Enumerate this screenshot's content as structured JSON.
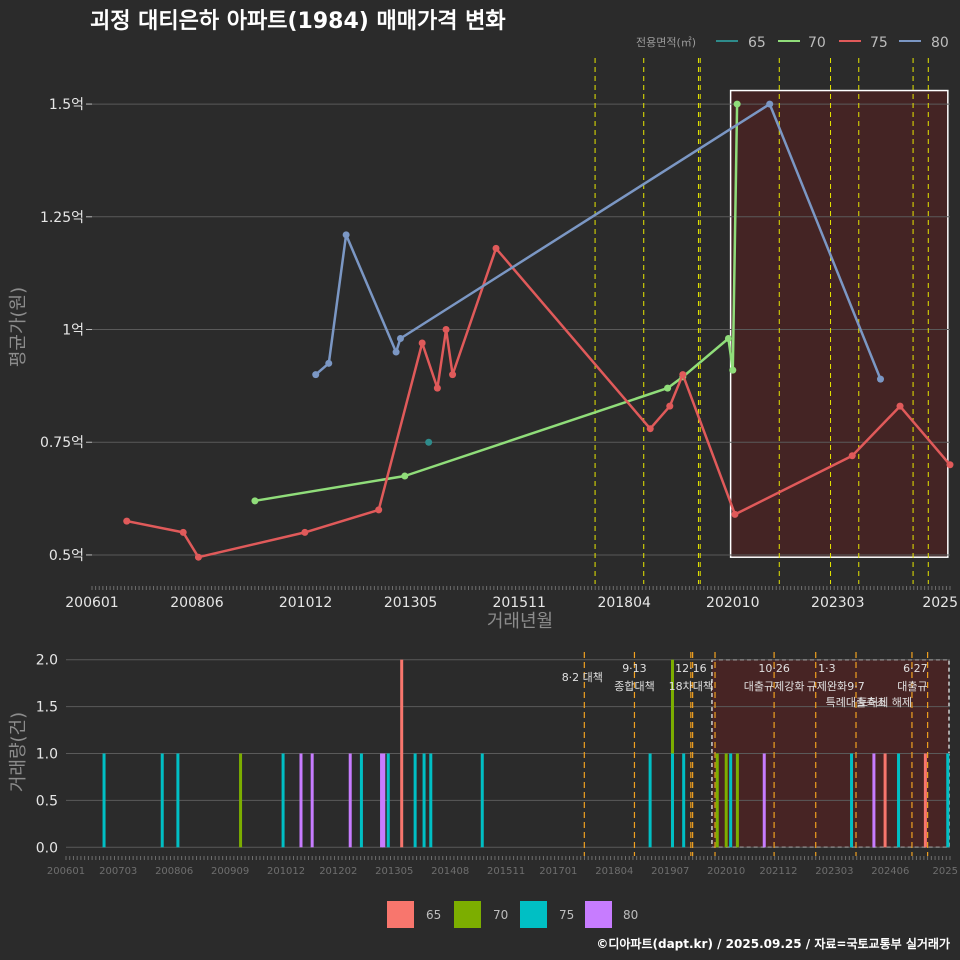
{
  "title": "괴정 대티은하 아파트(1984) 매매가격 변화",
  "footer": "©디아파트(dapt.kr) / 2025.09.25 / 자료=국토교통부 실거래가",
  "colors": {
    "background": "#2b2b2b",
    "s65_top": "#2e8b8b",
    "s70_top": "#90dd7a",
    "s75_top": "#e05a5a",
    "s80_top": "#7b97c4",
    "s65_bot": "#f8766d",
    "s70_bot": "#7cae00",
    "s75_bot": "#00bfc4",
    "s80_bot": "#c77cff",
    "policy": "#e6e600",
    "policy_bot": "#f0a020",
    "highlight": "#5a1f1f"
  },
  "legend_top": {
    "title": "전용면적(㎡)",
    "items": [
      "65",
      "70",
      "75",
      "80"
    ]
  },
  "legend_bottom": {
    "items": [
      "65",
      "70",
      "75",
      "80"
    ]
  },
  "chart_data": [
    {
      "type": "line",
      "title": "괴정 대티은하 아파트(1984) 매매가격 변화",
      "xlabel": "거래년월",
      "ylabel": "평균가(원)",
      "x_ticks": [
        "200601",
        "200806",
        "201012",
        "201305",
        "201511",
        "201804",
        "202010",
        "202303",
        "2025"
      ],
      "y_ticks": [
        "0.5억",
        "0.75억",
        "1억",
        "1.25억",
        "1.5억"
      ],
      "y_tick_values": [
        0.5,
        0.75,
        1.0,
        1.25,
        1.5
      ],
      "ylim": [
        0.44,
        1.58
      ],
      "xlim": [
        2006.0,
        2025.75
      ],
      "policy_lines": [
        2017.58,
        2018.7,
        2019.96,
        2020.0,
        2021.82,
        2023.0,
        2023.65,
        2024.9,
        2025.25
      ],
      "highlight_range": [
        2020.7,
        2025.7
      ],
      "series": [
        {
          "name": "65",
          "points": [
            [
              2013.75,
              0.75
            ]
          ]
        },
        {
          "name": "70",
          "points": [
            [
              2009.75,
              0.62
            ],
            [
              2013.2,
              0.675
            ],
            [
              2019.25,
              0.87
            ],
            [
              2019.6,
              0.895
            ],
            [
              2020.65,
              0.98
            ],
            [
              2020.75,
              0.91
            ],
            [
              2020.85,
              1.5
            ]
          ]
        },
        {
          "name": "75",
          "points": [
            [
              2006.8,
              0.575
            ],
            [
              2008.1,
              0.55
            ],
            [
              2008.45,
              0.495
            ],
            [
              2010.9,
              0.55
            ],
            [
              2012.6,
              0.6
            ],
            [
              2013.6,
              0.97
            ],
            [
              2013.95,
              0.87
            ],
            [
              2014.15,
              1.0
            ],
            [
              2014.3,
              0.9
            ],
            [
              2015.3,
              1.18
            ],
            [
              2018.85,
              0.78
            ],
            [
              2019.3,
              0.83
            ],
            [
              2019.6,
              0.9
            ],
            [
              2020.8,
              0.59
            ],
            [
              2023.5,
              0.72
            ],
            [
              2024.6,
              0.83
            ],
            [
              2025.75,
              0.7
            ]
          ]
        },
        {
          "name": "80",
          "points": [
            [
              2011.15,
              0.9
            ],
            [
              2011.45,
              0.925
            ],
            [
              2011.85,
              1.21
            ],
            [
              2013.0,
              0.95
            ],
            [
              2013.1,
              0.98
            ],
            [
              2021.6,
              1.5
            ],
            [
              2024.15,
              0.89
            ]
          ]
        }
      ]
    },
    {
      "type": "bar",
      "xlabel": "",
      "ylabel": "거래량(건)",
      "x_ticks": [
        "200601",
        "200703",
        "200806",
        "200909",
        "201012",
        "201202",
        "201305",
        "201408",
        "201511",
        "201701",
        "201804",
        "201907",
        "202010",
        "202112",
        "202303",
        "202406",
        "2025"
      ],
      "y_ticks": [
        "0.0",
        "0.5",
        "1.0",
        "1.5",
        "2.0"
      ],
      "y_tick_values": [
        0,
        0.5,
        1.0,
        1.5,
        2.0
      ],
      "ylim": [
        -0.05,
        2.05
      ],
      "xlim": [
        2006.0,
        2025.75
      ],
      "policy_lines": [
        2017.58,
        2018.7,
        2019.96,
        2020.0,
        2020.5,
        2021.82,
        2022.75,
        2023.65,
        2024.9,
        2025.25
      ],
      "highlight_range": [
        2020.7,
        2025.75
      ],
      "policy_labels": [
        {
          "x": 2017.58,
          "date": "",
          "text": "8·2 대책"
        },
        {
          "x": 2018.7,
          "date": "9·13",
          "text": "종합대책"
        },
        {
          "x": 2019.96,
          "date": "12·16",
          "text": "18차대책"
        },
        {
          "x": 2021.82,
          "date": "10·26",
          "text": "대출규제강화"
        },
        {
          "x": 2023.0,
          "date": "1·3",
          "text": "규제완화"
        },
        {
          "x": 2023.65,
          "date": "",
          "text": "9·7"
        },
        {
          "x": 2023.65,
          "date": "",
          "text": "특례대출축소"
        },
        {
          "x": 2025.25,
          "date": "6·27",
          "text": "대출규"
        },
        {
          "x": 2024.9,
          "date": "",
          "text": "토허제 해제"
        }
      ],
      "series": [
        {
          "name": "65",
          "bars": [
            [
              2013.5,
              2
            ],
            [
              2024.3,
              1
            ],
            [
              2025.2,
              1
            ]
          ]
        },
        {
          "name": "70",
          "bars": [
            [
              2009.9,
              1
            ],
            [
              2019.55,
              2
            ],
            [
              2020.55,
              1
            ],
            [
              2020.75,
              1
            ],
            [
              2021.0,
              1
            ]
          ]
        },
        {
          "name": "75",
          "bars": [
            [
              2006.85,
              1
            ],
            [
              2008.15,
              1
            ],
            [
              2008.5,
              1
            ],
            [
              2010.85,
              1
            ],
            [
              2012.6,
              1
            ],
            [
              2013.2,
              1
            ],
            [
              2013.8,
              1
            ],
            [
              2014.0,
              1
            ],
            [
              2014.15,
              1
            ],
            [
              2015.3,
              1
            ],
            [
              2019.05,
              1
            ],
            [
              2019.55,
              1
            ],
            [
              2019.8,
              1
            ],
            [
              2020.85,
              1
            ],
            [
              2023.55,
              1
            ],
            [
              2024.6,
              1
            ],
            [
              2025.7,
              1
            ]
          ]
        },
        {
          "name": "80",
          "bars": [
            [
              2011.25,
              1
            ],
            [
              2011.5,
              1
            ],
            [
              2012.35,
              1
            ],
            [
              2013.05,
              1
            ],
            [
              2013.1,
              1
            ],
            [
              2021.6,
              1
            ],
            [
              2024.05,
              1
            ]
          ]
        }
      ]
    }
  ]
}
